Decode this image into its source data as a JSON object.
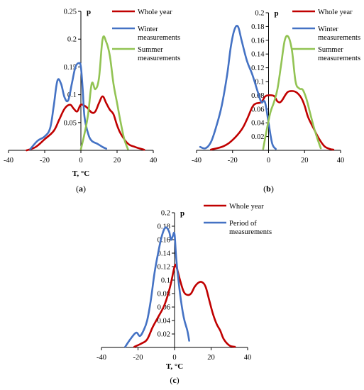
{
  "colors": {
    "whole_year": "#C00000",
    "winter": "#4472C4",
    "summer": "#92C353",
    "period": "#4472C4"
  },
  "chart_data": [
    {
      "type": "line",
      "panel": "a",
      "panel_label_open": "(",
      "panel_label_letter": "a",
      "panel_label_close": ")",
      "xlabel": "T,  °C",
      "ylabel": "p",
      "xlim": [
        -40,
        40
      ],
      "ylim": [
        0,
        0.25
      ],
      "x_ticks": [
        -40,
        -20,
        0,
        20,
        40
      ],
      "x_tick_labels": [
        "-40",
        "-20",
        "0",
        "20",
        "40"
      ],
      "y_ticks": [
        0.05,
        0.1,
        0.15,
        0.2,
        0.25
      ],
      "y_tick_labels": [
        "0.05",
        "0.1",
        "0.15",
        "0.2",
        "0.25"
      ],
      "legend_position": "top-right",
      "series": [
        {
          "name": "Whole year",
          "color_key": "whole_year",
          "points": [
            [
              -30,
              0
            ],
            [
              -25,
              0.006
            ],
            [
              -20,
              0.02
            ],
            [
              -15,
              0.035
            ],
            [
              -12,
              0.055
            ],
            [
              -9,
              0.075
            ],
            [
              -6,
              0.082
            ],
            [
              -4,
              0.075
            ],
            [
              -2,
              0.07
            ],
            [
              0,
              0.082
            ],
            [
              3,
              0.078
            ],
            [
              6,
              0.068
            ],
            [
              8,
              0.07
            ],
            [
              10,
              0.085
            ],
            [
              12,
              0.097
            ],
            [
              14,
              0.085
            ],
            [
              16,
              0.073
            ],
            [
              18,
              0.065
            ],
            [
              20,
              0.045
            ],
            [
              22,
              0.03
            ],
            [
              26,
              0.012
            ],
            [
              30,
              0.006
            ],
            [
              35,
              0.001
            ]
          ]
        },
        {
          "name": "Winter measurements",
          "color_key": "winter",
          "points": [
            [
              -28,
              0.002
            ],
            [
              -24,
              0.017
            ],
            [
              -20,
              0.025
            ],
            [
              -17,
              0.04
            ],
            [
              -15,
              0.08
            ],
            [
              -13,
              0.125
            ],
            [
              -11,
              0.12
            ],
            [
              -9,
              0.095
            ],
            [
              -7,
              0.09
            ],
            [
              -5,
              0.12
            ],
            [
              -3,
              0.15
            ],
            [
              -1,
              0.157
            ],
            [
              0,
              0.15
            ],
            [
              1,
              0.11
            ],
            [
              2,
              0.06
            ],
            [
              4,
              0.03
            ],
            [
              6,
              0.017
            ],
            [
              9,
              0.012
            ],
            [
              12,
              0.006
            ],
            [
              14,
              0.003
            ]
          ]
        },
        {
          "name": "Summer measurements",
          "color_key": "summer",
          "points": [
            [
              0,
              0.002
            ],
            [
              2,
              0.03
            ],
            [
              4,
              0.065
            ],
            [
              6,
              0.12
            ],
            [
              8,
              0.11
            ],
            [
              10,
              0.13
            ],
            [
              12,
              0.2
            ],
            [
              14,
              0.195
            ],
            [
              16,
              0.17
            ],
            [
              18,
              0.12
            ],
            [
              20,
              0.085
            ],
            [
              22,
              0.05
            ],
            [
              24,
              0.02
            ],
            [
              26,
              0.002
            ]
          ]
        }
      ],
      "legend": [
        "Whole year",
        "Winter measurements",
        "Summer measurements"
      ],
      "legend_lines": [
        [
          "Whole year"
        ],
        [
          "Winter",
          "measurements"
        ],
        [
          "Summer",
          "measurements"
        ]
      ]
    },
    {
      "type": "line",
      "panel": "b",
      "panel_label_open": "(",
      "panel_label_letter": "b",
      "panel_label_close": ")",
      "xlabel": "",
      "ylabel": "p",
      "xlim": [
        -40,
        40
      ],
      "ylim": [
        0,
        0.2
      ],
      "x_ticks": [
        -40,
        -20,
        0,
        20,
        40
      ],
      "x_tick_labels": [
        "-40",
        "-20",
        "0",
        "20",
        "40"
      ],
      "y_ticks": [
        0.02,
        0.04,
        0.06,
        0.08,
        0.1,
        0.12,
        0.14,
        0.16,
        0.18,
        0.2
      ],
      "y_tick_labels": [
        "0.02",
        "0.04",
        "0.06",
        "0.08",
        "0.1",
        "0.12",
        "0.14",
        "0.16",
        "0.18",
        "0.2"
      ],
      "legend_position": "top-right",
      "series": [
        {
          "name": "Whole year",
          "color_key": "whole_year",
          "points": [
            [
              -32,
              0.001
            ],
            [
              -25,
              0.006
            ],
            [
              -20,
              0.015
            ],
            [
              -15,
              0.03
            ],
            [
              -12,
              0.045
            ],
            [
              -9,
              0.063
            ],
            [
              -7,
              0.068
            ],
            [
              -4,
              0.07
            ],
            [
              -2,
              0.078
            ],
            [
              0,
              0.08
            ],
            [
              3,
              0.079
            ],
            [
              5,
              0.071
            ],
            [
              7,
              0.071
            ],
            [
              10,
              0.083
            ],
            [
              12,
              0.086
            ],
            [
              15,
              0.085
            ],
            [
              18,
              0.077
            ],
            [
              20,
              0.065
            ],
            [
              22,
              0.048
            ],
            [
              25,
              0.032
            ],
            [
              28,
              0.017
            ],
            [
              31,
              0.006
            ],
            [
              34,
              0.002
            ],
            [
              36,
              0.001
            ]
          ]
        },
        {
          "name": "Winter measurements",
          "color_key": "winter",
          "points": [
            [
              -38,
              0.005
            ],
            [
              -35,
              0.003
            ],
            [
              -32,
              0.012
            ],
            [
              -29,
              0.035
            ],
            [
              -26,
              0.065
            ],
            [
              -23,
              0.11
            ],
            [
              -21,
              0.15
            ],
            [
              -19,
              0.175
            ],
            [
              -17,
              0.18
            ],
            [
              -15,
              0.16
            ],
            [
              -12,
              0.13
            ],
            [
              -9,
              0.11
            ],
            [
              -6,
              0.085
            ],
            [
              -4,
              0.07
            ],
            [
              -2,
              0.07
            ],
            [
              0,
              0.04
            ],
            [
              2,
              0.01
            ],
            [
              4,
              0.002
            ]
          ]
        },
        {
          "name": "Summer measurements",
          "color_key": "summer",
          "points": [
            [
              -3,
              0.002
            ],
            [
              -1,
              0.03
            ],
            [
              1,
              0.055
            ],
            [
              3,
              0.07
            ],
            [
              5,
              0.09
            ],
            [
              7,
              0.125
            ],
            [
              9,
              0.16
            ],
            [
              11,
              0.165
            ],
            [
              13,
              0.145
            ],
            [
              15,
              0.1
            ],
            [
              17,
              0.09
            ],
            [
              19,
              0.088
            ],
            [
              21,
              0.075
            ],
            [
              23,
              0.055
            ],
            [
              25,
              0.035
            ],
            [
              27,
              0.018
            ],
            [
              29,
              0.003
            ]
          ]
        }
      ],
      "legend": [
        "Whole year",
        "Winter measurements",
        "Summer measurements"
      ],
      "legend_lines": [
        [
          "Whole year"
        ],
        [
          "Winter",
          "measurements"
        ],
        [
          "Summer",
          "measurements"
        ]
      ]
    },
    {
      "type": "line",
      "panel": "c",
      "panel_label_open": "(",
      "panel_label_letter": "c",
      "panel_label_close": ")",
      "xlabel": "T,  °C",
      "ylabel": "p",
      "xlim": [
        -40,
        40
      ],
      "ylim": [
        0,
        0.2
      ],
      "x_ticks": [
        -40,
        -20,
        0,
        20,
        40
      ],
      "x_tick_labels": [
        "-40",
        "-20",
        "0",
        "20",
        "40"
      ],
      "y_ticks": [
        0.02,
        0.04,
        0.06,
        0.08,
        0.1,
        0.12,
        0.14,
        0.16,
        0.18,
        0.2
      ],
      "y_tick_labels": [
        "0.02",
        "0.04",
        "0.06",
        "0.08",
        "0.1",
        "0.12",
        "0.14",
        "0.16",
        "0.18",
        "0.2"
      ],
      "legend_position": "top-right",
      "series": [
        {
          "name": "Whole year",
          "color_key": "whole_year",
          "points": [
            [
              -22,
              0.001
            ],
            [
              -18,
              0.006
            ],
            [
              -15,
              0.012
            ],
            [
              -12,
              0.03
            ],
            [
              -9,
              0.045
            ],
            [
              -6,
              0.06
            ],
            [
              -4,
              0.075
            ],
            [
              -2,
              0.095
            ],
            [
              0,
              0.12
            ],
            [
              1,
              0.12
            ],
            [
              3,
              0.1
            ],
            [
              5,
              0.083
            ],
            [
              7,
              0.078
            ],
            [
              9,
              0.08
            ],
            [
              11,
              0.09
            ],
            [
              13,
              0.096
            ],
            [
              15,
              0.097
            ],
            [
              17,
              0.09
            ],
            [
              19,
              0.07
            ],
            [
              21,
              0.05
            ],
            [
              23,
              0.035
            ],
            [
              25,
              0.025
            ],
            [
              27,
              0.012
            ],
            [
              30,
              0.003
            ],
            [
              33,
              0.001
            ]
          ]
        },
        {
          "name": "Period of measurements",
          "color_key": "period",
          "points": [
            [
              -27,
              0.001
            ],
            [
              -24,
              0.013
            ],
            [
              -21,
              0.022
            ],
            [
              -19,
              0.017
            ],
            [
              -17,
              0.025
            ],
            [
              -15,
              0.04
            ],
            [
              -13,
              0.07
            ],
            [
              -11,
              0.11
            ],
            [
              -9,
              0.14
            ],
            [
              -7,
              0.165
            ],
            [
              -5,
              0.178
            ],
            [
              -3,
              0.172
            ],
            [
              -2,
              0.16
            ],
            [
              -1,
              0.165
            ],
            [
              0,
              0.168
            ],
            [
              1,
              0.13
            ],
            [
              3,
              0.08
            ],
            [
              5,
              0.045
            ],
            [
              7,
              0.025
            ],
            [
              8,
              0.01
            ]
          ]
        }
      ],
      "legend": [
        "Whole year",
        "Period of measurements"
      ],
      "legend_lines": [
        [
          "Whole year"
        ],
        [
          "Period of",
          "measurements"
        ]
      ]
    }
  ]
}
